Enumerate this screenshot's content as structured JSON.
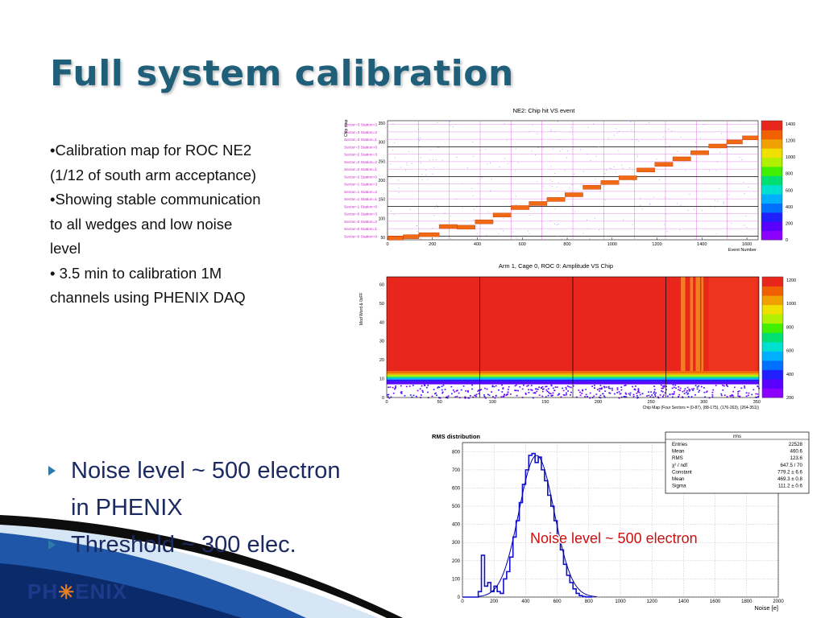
{
  "slide": {
    "title": "Full system calibration",
    "notes": [
      "•Calibration map for ROC NE2",
      "(1/12 of south arm acceptance)",
      "•Showing stable communication",
      "to all wedges and low noise",
      "level",
      "• 3.5 min to calibration 1M",
      "channels using PHENIX DAQ"
    ],
    "bullets": [
      {
        "lines": [
          "Noise level ~ 500 electron",
          "in PHENIX"
        ]
      },
      {
        "lines": [
          "Threshold ~ 300 elec."
        ]
      }
    ],
    "logo": {
      "left": "PH",
      "right": "ENIX"
    }
  },
  "chart_data": [
    {
      "type": "heatmap",
      "title": "NE2: Chip hit VS event",
      "ylabel": "Chip map",
      "xlabel": "Event Number",
      "x_ticks": [
        "0",
        "200",
        "400",
        "600",
        "800",
        "1000",
        "1200",
        "1400",
        "1600"
      ],
      "y_ticks": [
        "350",
        "300",
        "250",
        "200",
        "150",
        "100",
        "50"
      ],
      "xlim": [
        0,
        1650
      ],
      "ylim": [
        0,
        352
      ],
      "row_labels": [
        "Sector=3 Station=3",
        "Sector=3 Station=2",
        "Sector=3 Station=1",
        "Sector=3 Station=0",
        "Sector=2 Station=3",
        "Sector=2 Station=2",
        "Sector=2 Station=1",
        "Sector=2 Station=0",
        "Sector=1 Station=3",
        "Sector=1 Station=2",
        "Sector=1 Station=1",
        "Sector=1 Station=0",
        "Sector=0 Station=3",
        "Sector=0 Station=2",
        "Sector=0 Station=1",
        "Sector=0 Station=0"
      ],
      "colorbar_ticks": [
        "1400",
        "1200",
        "1000",
        "800",
        "600",
        "400",
        "200",
        "0"
      ],
      "staircase": [
        {
          "x0": 0,
          "x1": 70,
          "y": 4
        },
        {
          "x0": 70,
          "x1": 140,
          "y": 8
        },
        {
          "x0": 140,
          "x1": 230,
          "y": 14
        },
        {
          "x0": 230,
          "x1": 310,
          "y": 38
        },
        {
          "x0": 310,
          "x1": 390,
          "y": 36
        },
        {
          "x0": 390,
          "x1": 470,
          "y": 52
        },
        {
          "x0": 470,
          "x1": 550,
          "y": 72
        },
        {
          "x0": 550,
          "x1": 630,
          "y": 94
        },
        {
          "x0": 630,
          "x1": 710,
          "y": 106
        },
        {
          "x0": 710,
          "x1": 790,
          "y": 118
        },
        {
          "x0": 790,
          "x1": 870,
          "y": 132
        },
        {
          "x0": 870,
          "x1": 950,
          "y": 154
        },
        {
          "x0": 950,
          "x1": 1030,
          "y": 168
        },
        {
          "x0": 1030,
          "x1": 1110,
          "y": 182
        },
        {
          "x0": 1110,
          "x1": 1190,
          "y": 205
        },
        {
          "x0": 1190,
          "x1": 1270,
          "y": 222
        },
        {
          "x0": 1270,
          "x1": 1350,
          "y": 238
        },
        {
          "x0": 1350,
          "x1": 1430,
          "y": 256
        },
        {
          "x0": 1430,
          "x1": 1510,
          "y": 276
        },
        {
          "x0": 1510,
          "x1": 1580,
          "y": 288
        },
        {
          "x0": 1580,
          "x1": 1650,
          "y": 300
        }
      ]
    },
    {
      "type": "heatmap",
      "title": "Arm 1, Cage 0, ROC 0: Amplitude VS Chip",
      "ylabel": "Mod Word & 0xFF",
      "xlabel": "Chip Map (Four Sectors = (0-87), (88-175), (176-263), (264-351))",
      "x_ticks": [
        "0",
        "50",
        "100",
        "150",
        "200",
        "250",
        "300",
        "350"
      ],
      "y_ticks": [
        "60",
        "50",
        "40",
        "30",
        "20",
        "10",
        "0"
      ],
      "xlim": [
        0,
        352
      ],
      "ylim": [
        0,
        64
      ],
      "colorbar_ticks": [
        "1200",
        "1000",
        "800",
        "600",
        "400",
        "200"
      ]
    },
    {
      "type": "bar",
      "title": "RMS distribution",
      "xlabel": "Noise [e]",
      "x_ticks": [
        "0",
        "200",
        "400",
        "600",
        "800",
        "1000",
        "1200",
        "1400",
        "1600",
        "1800",
        "2000"
      ],
      "y_ticks": [
        "800",
        "700",
        "600",
        "500",
        "400",
        "300",
        "200",
        "100",
        "0"
      ],
      "xlim": [
        0,
        2000
      ],
      "ylim": [
        0,
        850
      ],
      "x": [
        0,
        20,
        40,
        60,
        80,
        100,
        120,
        140,
        160,
        180,
        200,
        220,
        240,
        260,
        280,
        300,
        320,
        340,
        360,
        380,
        400,
        420,
        440,
        460,
        480,
        500,
        520,
        540,
        560,
        580,
        600,
        620,
        640,
        660,
        680,
        700,
        720,
        740,
        760,
        780,
        800
      ],
      "values": [
        0,
        0,
        0,
        0,
        0,
        30,
        230,
        60,
        80,
        30,
        60,
        30,
        20,
        100,
        140,
        220,
        330,
        420,
        520,
        620,
        700,
        780,
        790,
        740,
        770,
        700,
        640,
        560,
        500,
        420,
        330,
        260,
        180,
        120,
        80,
        45,
        20,
        8,
        3,
        1,
        0
      ],
      "stats_box": {
        "name": "rms",
        "rows": [
          [
            "Entries",
            "22528"
          ],
          [
            "Mean",
            "460.6"
          ],
          [
            "RMS",
            "123.6"
          ],
          [
            "χ² / ndf",
            "647.5 / 70"
          ],
          [
            "Constant",
            "779.2 ± 6.6"
          ],
          [
            "Mean",
            "469.3 ± 0.8"
          ],
          [
            "Sigma",
            "111.2 ± 0.6"
          ]
        ]
      },
      "fit": {
        "constant": 779.2,
        "mean": 469.3,
        "sigma": 111.2
      },
      "annotation": "Noise level ~ 500 electron"
    }
  ],
  "colors": {
    "title": "#1f5f7a",
    "bullet_text": "#1b2a60",
    "heat_high": "#e8261c",
    "staircase": "#f06a14",
    "histogram": "#1010d0",
    "annotation": "#cc1010"
  }
}
